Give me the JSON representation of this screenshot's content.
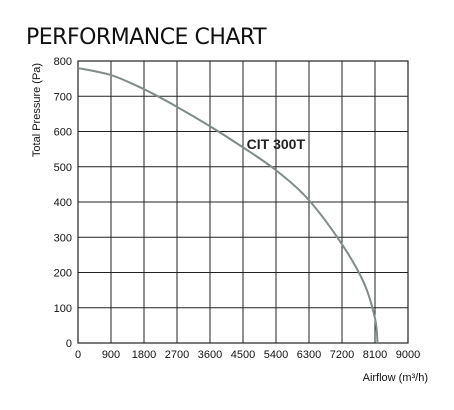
{
  "chart_data": {
    "type": "line",
    "title": "PERFORMANCE CHART",
    "xlabel": "Airflow (m³/h)",
    "ylabel": "Total Pressure (Pa)",
    "xlim": [
      0,
      9000
    ],
    "ylim": [
      0,
      800
    ],
    "xticks": [
      "0",
      "900",
      "1800",
      "2700",
      "3600",
      "4500",
      "5400",
      "6300",
      "7200",
      "8100",
      "9000"
    ],
    "yticks": [
      "0",
      "100",
      "200",
      "300",
      "400",
      "500",
      "600",
      "700",
      "800"
    ],
    "grid": true,
    "series": [
      {
        "name": "CIT 300T",
        "color": "#7f8c87",
        "x": [
          0,
          900,
          1800,
          2700,
          3600,
          4500,
          5400,
          6300,
          7200,
          7800,
          8100,
          8170
        ],
        "y": [
          780,
          760,
          720,
          670,
          615,
          555,
          490,
          405,
          280,
          170,
          70,
          0
        ]
      }
    ],
    "annotations": [
      {
        "text": "CIT 300T",
        "x": 4600,
        "y": 565
      }
    ]
  }
}
